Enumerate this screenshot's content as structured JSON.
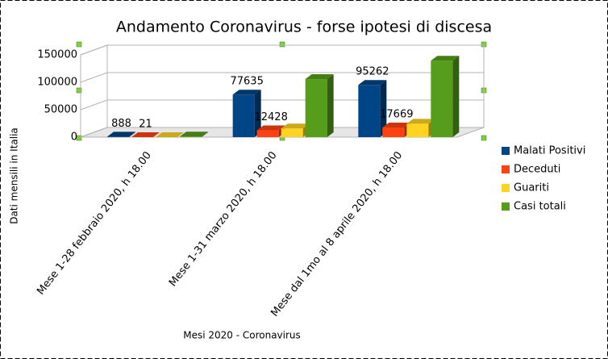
{
  "chart_data": {
    "type": "bar3d",
    "title": "Andamento Coronavirus - forse ipotesi di discesa",
    "x_label": "Mesi 2020 - Coronavirus",
    "y_label": "Dati mensili in Italia",
    "categories": [
      "Mese 1-28 febbraio 2020, h 18.00",
      "Mese 1-31 marzo 2020, h 18.00",
      "Mese dal 1mo al 8 aprile 2020, h 18.00"
    ],
    "series": [
      {
        "name": "Malati Positivi",
        "color": "#004586",
        "values": [
          888,
          77635,
          95262
        ],
        "show_labels": true
      },
      {
        "name": "Deceduti",
        "color": "#ff420e",
        "values": [
          21,
          12428,
          17669
        ],
        "show_labels": true
      },
      {
        "name": "Guariti",
        "color": "#ffd320",
        "values": [
          46,
          15729,
          24392
        ],
        "show_labels": false
      },
      {
        "name": "Casi totali",
        "color": "#579d1c",
        "values": [
          1128,
          105792,
          139422
        ],
        "show_labels": false
      }
    ],
    "ylim": [
      0,
      150000
    ],
    "yticks": [
      0,
      50000,
      100000,
      150000
    ],
    "grid": true,
    "legend": "right"
  }
}
